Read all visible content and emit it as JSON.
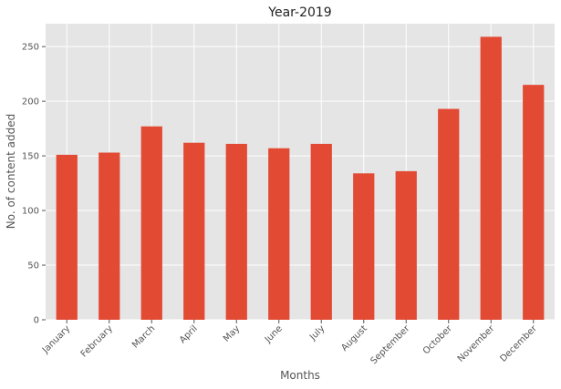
{
  "chart_data": {
    "type": "bar",
    "title": "Year-2019",
    "xlabel": "Months",
    "ylabel": "No. of content added",
    "categories": [
      "January",
      "February",
      "March",
      "April",
      "May",
      "June",
      "July",
      "August",
      "September",
      "October",
      "November",
      "December"
    ],
    "values": [
      151,
      153,
      177,
      162,
      161,
      157,
      161,
      134,
      136,
      193,
      259,
      215
    ],
    "ylim": [
      0,
      271
    ],
    "yticks": [
      0,
      50,
      100,
      150,
      200,
      250
    ],
    "grid": true,
    "colors": {
      "bar": "#E24A33",
      "plot_background": "#E5E5E5",
      "grid": "#FFFFFF"
    }
  }
}
